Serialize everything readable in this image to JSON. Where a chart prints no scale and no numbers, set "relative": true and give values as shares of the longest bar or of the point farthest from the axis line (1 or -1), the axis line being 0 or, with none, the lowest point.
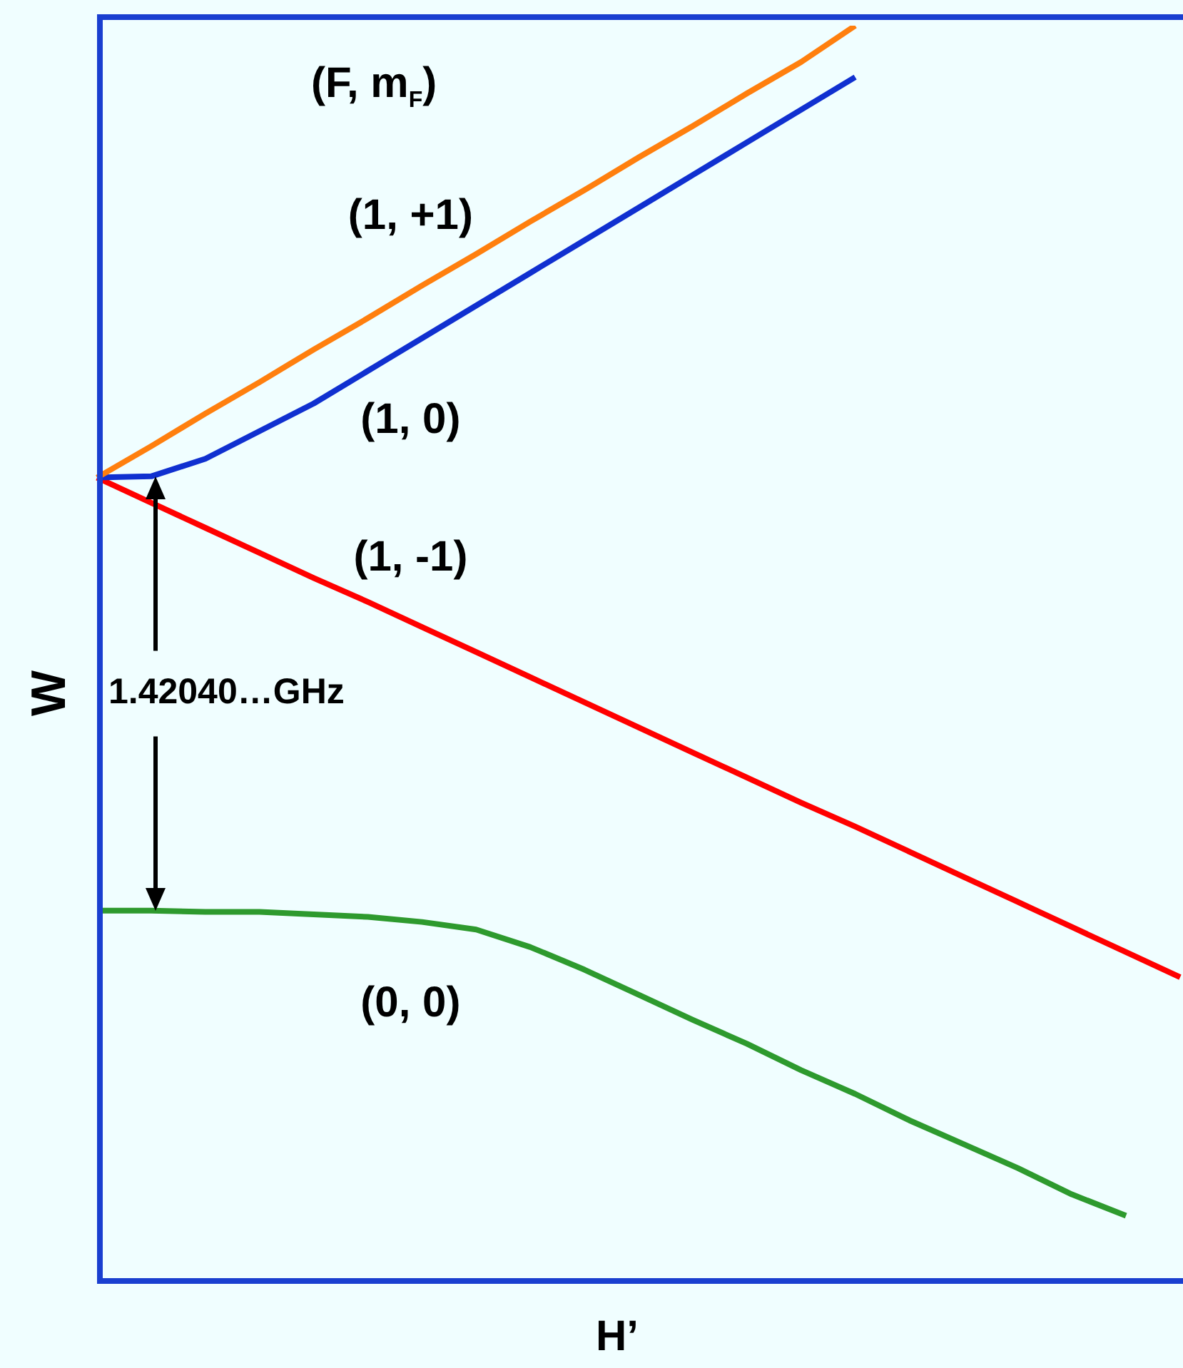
{
  "chart_data": {
    "type": "line",
    "relative": true,
    "xlabel": "H’",
    "ylabel": "W",
    "legend_title": "(F, m$_{F}$)",
    "legend": false,
    "marker": "none",
    "line_style": "solid",
    "annotations": [
      "1.42040…GHz"
    ],
    "categories": [
      null,
      null,
      null,
      null,
      null,
      null,
      null,
      null,
      null,
      null,
      null,
      null,
      null,
      null,
      null,
      null,
      null,
      null,
      null,
      null,
      null
    ],
    "series": [
      {
        "name": "(1, +1)",
        "color": "#ff7f0e",
        "values": [
          0.64,
          0.665,
          0.691,
          0.716,
          0.742,
          0.767,
          0.793,
          0.818,
          0.844,
          0.869,
          0.895,
          0.92,
          0.946,
          0.971,
          1.0,
          null,
          null,
          null,
          null,
          null,
          null
        ]
      },
      {
        "name": "(1, 0)",
        "color": "#1030d0",
        "values": [
          0.64,
          0.641,
          0.655,
          0.677,
          0.699,
          0.725,
          0.751,
          0.777,
          0.803,
          0.829,
          0.855,
          0.881,
          0.907,
          0.933,
          0.959,
          null,
          null,
          null,
          null,
          null,
          null
        ]
      },
      {
        "name": "(1, -1)",
        "color": "#ff0000",
        "values": [
          0.64,
          0.62,
          0.6,
          0.58,
          0.56,
          0.541,
          0.521,
          0.501,
          0.481,
          0.461,
          0.441,
          0.421,
          0.401,
          0.381,
          0.362,
          0.342,
          0.322,
          0.302,
          0.282,
          0.262,
          0.242
        ]
      },
      {
        "name": "(0, 0)",
        "color": "#2e9a2e",
        "values": [
          0.295,
          0.295,
          0.294,
          0.294,
          0.292,
          0.29,
          0.286,
          0.28,
          0.266,
          0.248,
          0.228,
          0.208,
          0.189,
          0.168,
          0.149,
          0.128,
          0.109,
          0.09,
          0.069,
          0.052,
          null
        ]
      }
    ]
  }
}
